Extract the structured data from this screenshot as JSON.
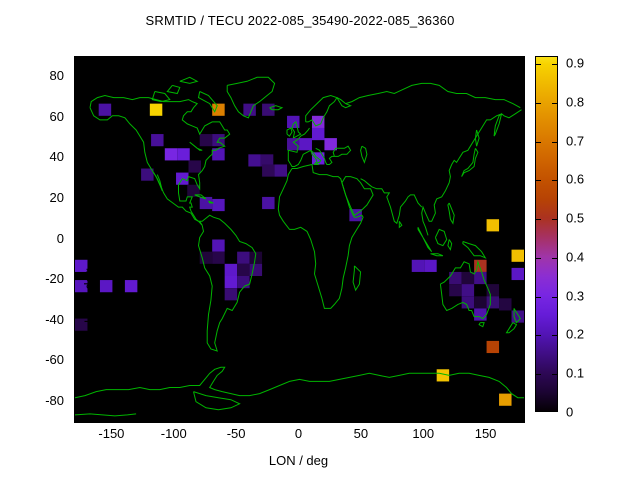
{
  "title": "SRMTID / TECU 2022-085_35490-2022-085_36360",
  "axes": {
    "x_label": "LON / deg",
    "y_label": "LAT / deg",
    "x_ticks": [
      -150,
      -100,
      -50,
      0,
      50,
      100,
      150
    ],
    "y_ticks": [
      80,
      60,
      40,
      20,
      0,
      -20,
      -40,
      -60,
      -80
    ],
    "x_range": [
      -180,
      180
    ],
    "y_range": [
      -90,
      90
    ]
  },
  "colorbar": {
    "ticks": [
      "0",
      "0.1",
      "0.2",
      "0.3",
      "0.4",
      "0.5",
      "0.6",
      "0.7",
      "0.8",
      "0.9"
    ],
    "tick_values": [
      0,
      0.1,
      0.2,
      0.3,
      0.4,
      0.5,
      0.6,
      0.7,
      0.8,
      0.9
    ],
    "max_value": 0.918,
    "palette": [
      [
        0.0,
        "#050005"
      ],
      [
        0.05,
        "#1c0433"
      ],
      [
        0.1,
        "#2e0857"
      ],
      [
        0.15,
        "#400e86"
      ],
      [
        0.2,
        "#5314b6"
      ],
      [
        0.25,
        "#661cd8"
      ],
      [
        0.3,
        "#7826e2"
      ],
      [
        0.35,
        "#8c2ed2"
      ],
      [
        0.4,
        "#a035a8"
      ],
      [
        0.45,
        "#a63164"
      ],
      [
        0.5,
        "#ab3220"
      ],
      [
        0.55,
        "#b74304"
      ],
      [
        0.6,
        "#c35200"
      ],
      [
        0.65,
        "#cf6400"
      ],
      [
        0.7,
        "#d97800"
      ],
      [
        0.75,
        "#e18c00"
      ],
      [
        0.8,
        "#e9a200"
      ],
      [
        0.85,
        "#f0ba00"
      ],
      [
        0.9,
        "#f7d300"
      ],
      [
        0.918,
        "#fae116"
      ]
    ]
  },
  "colors": {
    "coastline": "#00b400",
    "ocean_background": "#000000",
    "page_background": "#ffffff",
    "text": "#000000"
  },
  "chart_data": {
    "type": "heatmap",
    "title": "SRMTID / TECU 2022-085_35490-2022-085_36360",
    "xlabel": "LON / deg",
    "ylabel": "LAT / deg",
    "xlim": [
      -180,
      180
    ],
    "ylim": [
      -90,
      90
    ],
    "colorbar_range": [
      0,
      0.918
    ],
    "cell_size_deg": {
      "lon": 10,
      "lat": 6
    },
    "cells_note": "each cell = [west_edge_lon_deg, north_edge_lat_deg, TECU_value]",
    "cells": [
      [
        -161,
        67,
        0.18
      ],
      [
        -120,
        67,
        0.9
      ],
      [
        -70,
        67,
        0.72
      ],
      [
        -45,
        67,
        0.15
      ],
      [
        -30,
        67,
        0.13
      ],
      [
        -10,
        61,
        0.2
      ],
      [
        10,
        61,
        0.33
      ],
      [
        10,
        55,
        0.24
      ],
      [
        -10,
        50,
        0.17
      ],
      [
        0,
        50,
        0.22
      ],
      [
        20,
        50,
        0.32
      ],
      [
        10,
        43,
        0.26
      ],
      [
        -41,
        42,
        0.16
      ],
      [
        -31,
        42,
        0.12
      ],
      [
        -30,
        37,
        0.1
      ],
      [
        -20,
        37,
        0.15
      ],
      [
        -119,
        52,
        0.17
      ],
      [
        -80,
        52,
        0.08
      ],
      [
        -70,
        52,
        0.14
      ],
      [
        -108,
        45,
        0.3
      ],
      [
        -98,
        45,
        0.26
      ],
      [
        -70,
        45,
        0.2
      ],
      [
        -89,
        39,
        0.08
      ],
      [
        -127,
        35,
        0.14
      ],
      [
        -99,
        33,
        0.24
      ],
      [
        -90,
        27,
        0.06
      ],
      [
        -80,
        21,
        0.18
      ],
      [
        -70,
        20,
        0.21
      ],
      [
        -30,
        21,
        0.18
      ],
      [
        -180,
        -10,
        0.23
      ],
      [
        -180,
        -20,
        0.21
      ],
      [
        -160,
        -20,
        0.22
      ],
      [
        -140,
        -20,
        0.24
      ],
      [
        -180,
        -39,
        0.08
      ],
      [
        -70,
        0,
        0.2
      ],
      [
        -80,
        -6,
        0.06
      ],
      [
        -70,
        -6,
        0.08
      ],
      [
        -50,
        -6,
        0.14
      ],
      [
        -40,
        -6,
        0.05
      ],
      [
        -60,
        -12,
        0.23
      ],
      [
        -50,
        -12,
        0.08
      ],
      [
        -40,
        -12,
        0.13
      ],
      [
        -60,
        -18,
        0.24
      ],
      [
        -50,
        -18,
        0.14
      ],
      [
        -60,
        -24,
        0.13
      ],
      [
        40,
        15,
        0.18
      ],
      [
        150,
        10,
        0.86
      ],
      [
        90,
        -10,
        0.2
      ],
      [
        100,
        -10,
        0.22
      ],
      [
        140,
        -10,
        0.5
      ],
      [
        120,
        -16,
        0.13
      ],
      [
        130,
        -16,
        0.06
      ],
      [
        140,
        -16,
        0.15
      ],
      [
        120,
        -22,
        0.08
      ],
      [
        130,
        -22,
        0.15
      ],
      [
        150,
        -22,
        0.06
      ],
      [
        130,
        -28,
        0.14
      ],
      [
        140,
        -28,
        0.05
      ],
      [
        150,
        -28,
        0.13
      ],
      [
        140,
        -34,
        0.19
      ],
      [
        160,
        -29,
        0.07
      ],
      [
        170,
        -35,
        0.15
      ],
      [
        170,
        -5,
        0.86
      ],
      [
        170,
        -14,
        0.22
      ],
      [
        150,
        -50,
        0.55
      ],
      [
        110,
        -64,
        0.87
      ],
      [
        160,
        -76,
        0.79
      ]
    ]
  }
}
